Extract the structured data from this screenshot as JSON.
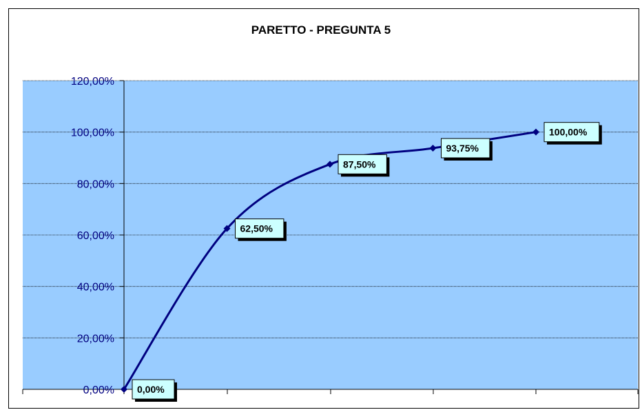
{
  "chart_data": {
    "type": "line",
    "title": "PARETTO - PREGUNTA 5",
    "xlabel": "",
    "ylabel": "",
    "x": [
      1,
      2,
      3,
      4,
      5
    ],
    "series": [
      {
        "values": [
          0,
          62.5,
          87.5,
          93.75,
          100
        ],
        "labels": [
          "0,00%",
          "62,50%",
          "87,50%",
          "93,75%",
          "100,00%"
        ],
        "color": "#000080"
      }
    ],
    "ylim": [
      0,
      120
    ],
    "yticks": [
      0,
      20,
      40,
      60,
      80,
      100,
      120
    ],
    "ytick_labels": [
      "0,00%",
      "20,00%",
      "40,00%",
      "60,00%",
      "80,00%",
      "100,00%",
      "120,00%"
    ],
    "grid": true,
    "smooth": true,
    "plot_background": "#99CCFF",
    "label_box_background": "#CCFFFF"
  }
}
